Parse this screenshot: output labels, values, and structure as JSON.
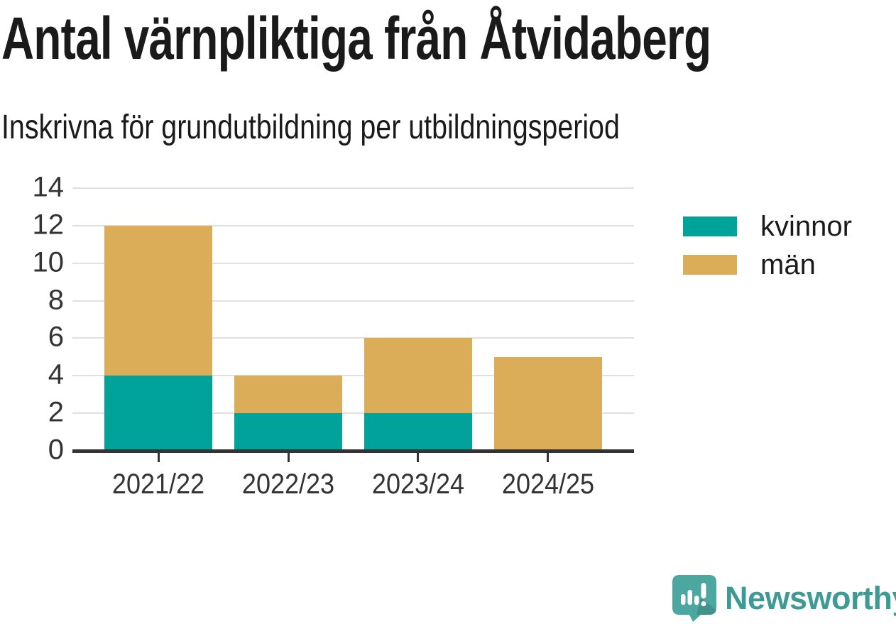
{
  "title": "Antal värnpliktiga från Åtvidaberg",
  "subtitle": "Inskrivna för grundutbildning per utbildningsperiod",
  "chart_data": {
    "type": "bar",
    "stacked": true,
    "title": "Antal värnpliktiga från Åtvidaberg",
    "subtitle": "Inskrivna för grundutbildning per utbildningsperiod",
    "categories": [
      "2021/22",
      "2022/23",
      "2023/24",
      "2024/25"
    ],
    "series": [
      {
        "name": "kvinnor",
        "color": "#00a399",
        "values": [
          4,
          2,
          2,
          0
        ]
      },
      {
        "name": "män",
        "color": "#dbad59",
        "values": [
          8,
          2,
          4,
          5
        ]
      }
    ],
    "totals": [
      12,
      4,
      6,
      5
    ],
    "xlabel": "",
    "ylabel": "",
    "ylim": [
      0,
      14
    ],
    "yticks": [
      0,
      2,
      4,
      6,
      8,
      10,
      12,
      14
    ],
    "grid": true,
    "legend_position": "right"
  },
  "branding": {
    "logo_text": "Newsworthy",
    "logo_text_color": "#3e9a94",
    "logo_icon_color": "#4ba7a0"
  },
  "colors": {
    "background": "#ffffff",
    "title_text": "#1a1a1a",
    "axis_text": "#333333",
    "gridline": "#e0e0e0",
    "axis_line": "#333333",
    "series_kvinnor": "#00a399",
    "series_man": "#dbad59"
  }
}
